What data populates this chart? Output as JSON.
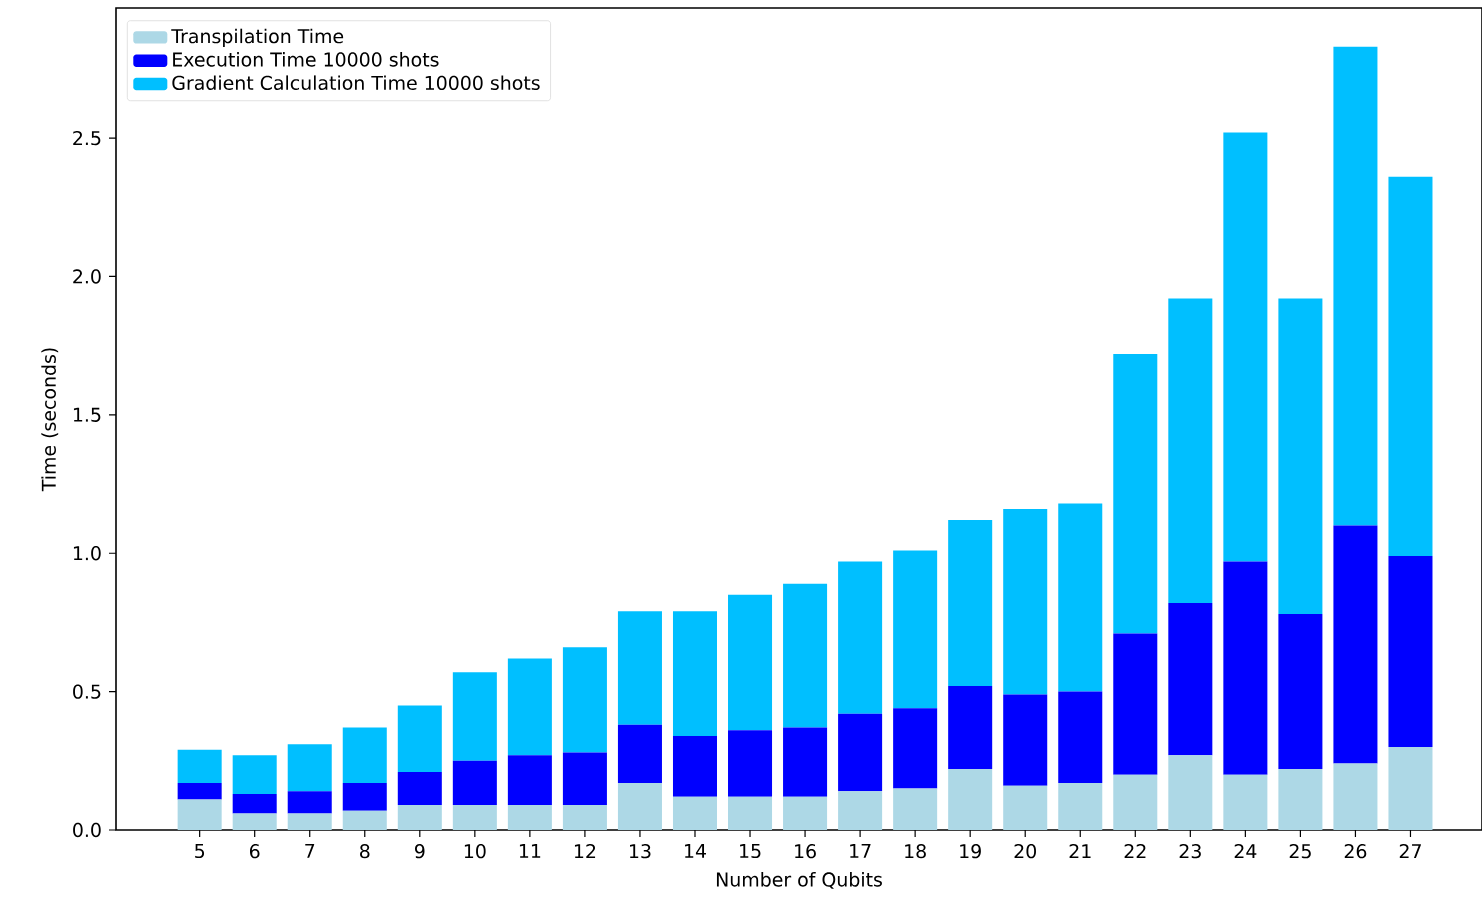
{
  "chart_data": {
    "type": "bar",
    "stacked": true,
    "xlabel": "Number of Qubits",
    "ylabel": "Time (seconds)",
    "categories": [
      "5",
      "6",
      "7",
      "8",
      "9",
      "10",
      "11",
      "12",
      "13",
      "14",
      "15",
      "16",
      "17",
      "18",
      "19",
      "20",
      "21",
      "22",
      "23",
      "24",
      "25",
      "26",
      "27"
    ],
    "series": [
      {
        "name": "Transpilation Time",
        "color": "#add8e6",
        "values": [
          0.11,
          0.06,
          0.06,
          0.07,
          0.09,
          0.09,
          0.09,
          0.09,
          0.17,
          0.12,
          0.12,
          0.12,
          0.14,
          0.15,
          0.22,
          0.16,
          0.17,
          0.2,
          0.27,
          0.2,
          0.22,
          0.24,
          0.3
        ]
      },
      {
        "name": "Execution Time 10000 shots",
        "color": "#0000ff",
        "values": [
          0.06,
          0.07,
          0.08,
          0.1,
          0.12,
          0.16,
          0.18,
          0.19,
          0.21,
          0.22,
          0.24,
          0.25,
          0.28,
          0.29,
          0.3,
          0.33,
          0.33,
          0.51,
          0.55,
          0.77,
          0.56,
          0.86,
          0.69
        ]
      },
      {
        "name": "Gradient Calculation Time 10000 shots",
        "color": "#00bfff",
        "values": [
          0.12,
          0.14,
          0.17,
          0.2,
          0.24,
          0.32,
          0.35,
          0.38,
          0.41,
          0.45,
          0.49,
          0.52,
          0.55,
          0.57,
          0.6,
          0.67,
          0.68,
          1.01,
          1.1,
          1.55,
          1.14,
          1.73,
          1.37
        ]
      }
    ],
    "ylim": [
      0,
      2.97
    ],
    "yticks": [
      {
        "value": 0,
        "label": "0.0"
      },
      {
        "value": 0.5,
        "label": "0.5"
      },
      {
        "value": 1,
        "label": "1.0"
      },
      {
        "value": 1.5,
        "label": "1.5"
      },
      {
        "value": 2,
        "label": "2.0"
      },
      {
        "value": 2.5,
        "label": "2.5"
      }
    ],
    "legend": "top left"
  }
}
